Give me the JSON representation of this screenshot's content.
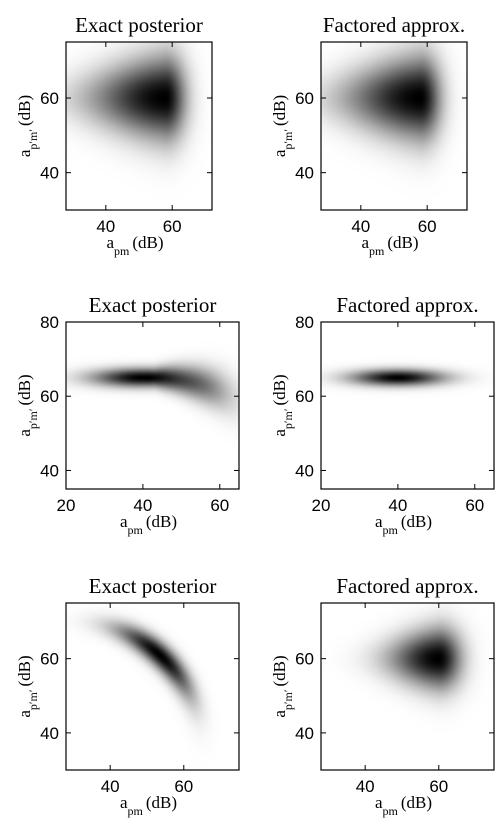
{
  "chart_data": [
    {
      "type": "heatmap",
      "title": "Exact posterior",
      "xlabel": {
        "main": "a",
        "sub": "pm",
        "unit": "(dB)"
      },
      "ylabel": {
        "main": "a",
        "sub": "p′m′",
        "unit": "(dB)"
      },
      "xlim": [
        28,
        72
      ],
      "ylim": [
        30,
        75
      ],
      "xticks": [
        40,
        60
      ],
      "yticks": [
        40,
        60
      ],
      "colormap": "white-to-black",
      "density": {
        "shape": "tapered-left",
        "peak": [
          58,
          60
        ],
        "spread_x": 22,
        "spread_y_left": 2,
        "spread_y_right": 11
      }
    },
    {
      "type": "heatmap",
      "title": "Factored approx.",
      "xlabel": {
        "main": "a",
        "sub": "pm",
        "unit": "(dB)"
      },
      "ylabel": {
        "main": "a",
        "sub": "p′m′",
        "unit": "(dB)"
      },
      "xlim": [
        28,
        72
      ],
      "ylim": [
        30,
        75
      ],
      "xticks": [
        40,
        60
      ],
      "yticks": [
        40,
        60
      ],
      "colormap": "white-to-black",
      "density": {
        "shape": "tapered-left",
        "peak": [
          58,
          60
        ],
        "spread_x": 22,
        "spread_y_left": 2,
        "spread_y_right": 11
      }
    },
    {
      "type": "heatmap",
      "title": "Exact posterior",
      "xlabel": {
        "main": "a",
        "sub": "pm",
        "unit": "(dB)"
      },
      "ylabel": {
        "main": "a",
        "sub": "p′m′",
        "unit": "(dB)"
      },
      "xlim": [
        20,
        65
      ],
      "ylim": [
        35,
        80
      ],
      "xticks": [
        20,
        40,
        60
      ],
      "yticks": [
        40,
        60,
        80
      ],
      "colormap": "white-to-black",
      "density": {
        "shape": "curved-tail",
        "peak": [
          40,
          65
        ],
        "spread_x": 13,
        "spread_y": 2.5,
        "bend_start": 43,
        "bend": -0.012
      }
    },
    {
      "type": "heatmap",
      "title": "Factored approx.",
      "xlabel": {
        "main": "a",
        "sub": "pm",
        "unit": "(dB)"
      },
      "ylabel": {
        "main": "a",
        "sub": "p′m′",
        "unit": "(dB)"
      },
      "xlim": [
        20,
        65
      ],
      "ylim": [
        35,
        80
      ],
      "xticks": [
        20,
        40,
        60
      ],
      "yticks": [
        40,
        60,
        80
      ],
      "colormap": "white-to-black",
      "density": {
        "shape": "ellipse",
        "peak": [
          40,
          65
        ],
        "spread_x": 12,
        "spread_y": 2.2
      }
    },
    {
      "type": "heatmap",
      "title": "Exact posterior",
      "xlabel": {
        "main": "a",
        "sub": "pm",
        "unit": "(dB)"
      },
      "ylabel": {
        "main": "a",
        "sub": "p′m′",
        "unit": "(dB)"
      },
      "xlim": [
        28,
        75
      ],
      "ylim": [
        30,
        75
      ],
      "xticks": [
        40,
        60
      ],
      "yticks": [
        40,
        60
      ],
      "colormap": "white-to-black",
      "density": {
        "shape": "arc",
        "center": [
          30,
          35
        ],
        "radius": 35,
        "arc_width": 3,
        "peak_angle_deg": 48,
        "angle_spread": 22
      }
    },
    {
      "type": "heatmap",
      "title": "Factored approx.",
      "xlabel": {
        "main": "a",
        "sub": "pm",
        "unit": "(dB)"
      },
      "ylabel": {
        "main": "a",
        "sub": "p′m′",
        "unit": "(dB)"
      },
      "xlim": [
        28,
        75
      ],
      "ylim": [
        30,
        75
      ],
      "xticks": [
        40,
        60
      ],
      "yticks": [
        40,
        60
      ],
      "colormap": "white-to-black",
      "density": {
        "shape": "tapered-left",
        "peak": [
          60,
          60
        ],
        "spread_x": 13,
        "spread_y_left": 2.5,
        "spread_y_right": 8
      }
    }
  ]
}
